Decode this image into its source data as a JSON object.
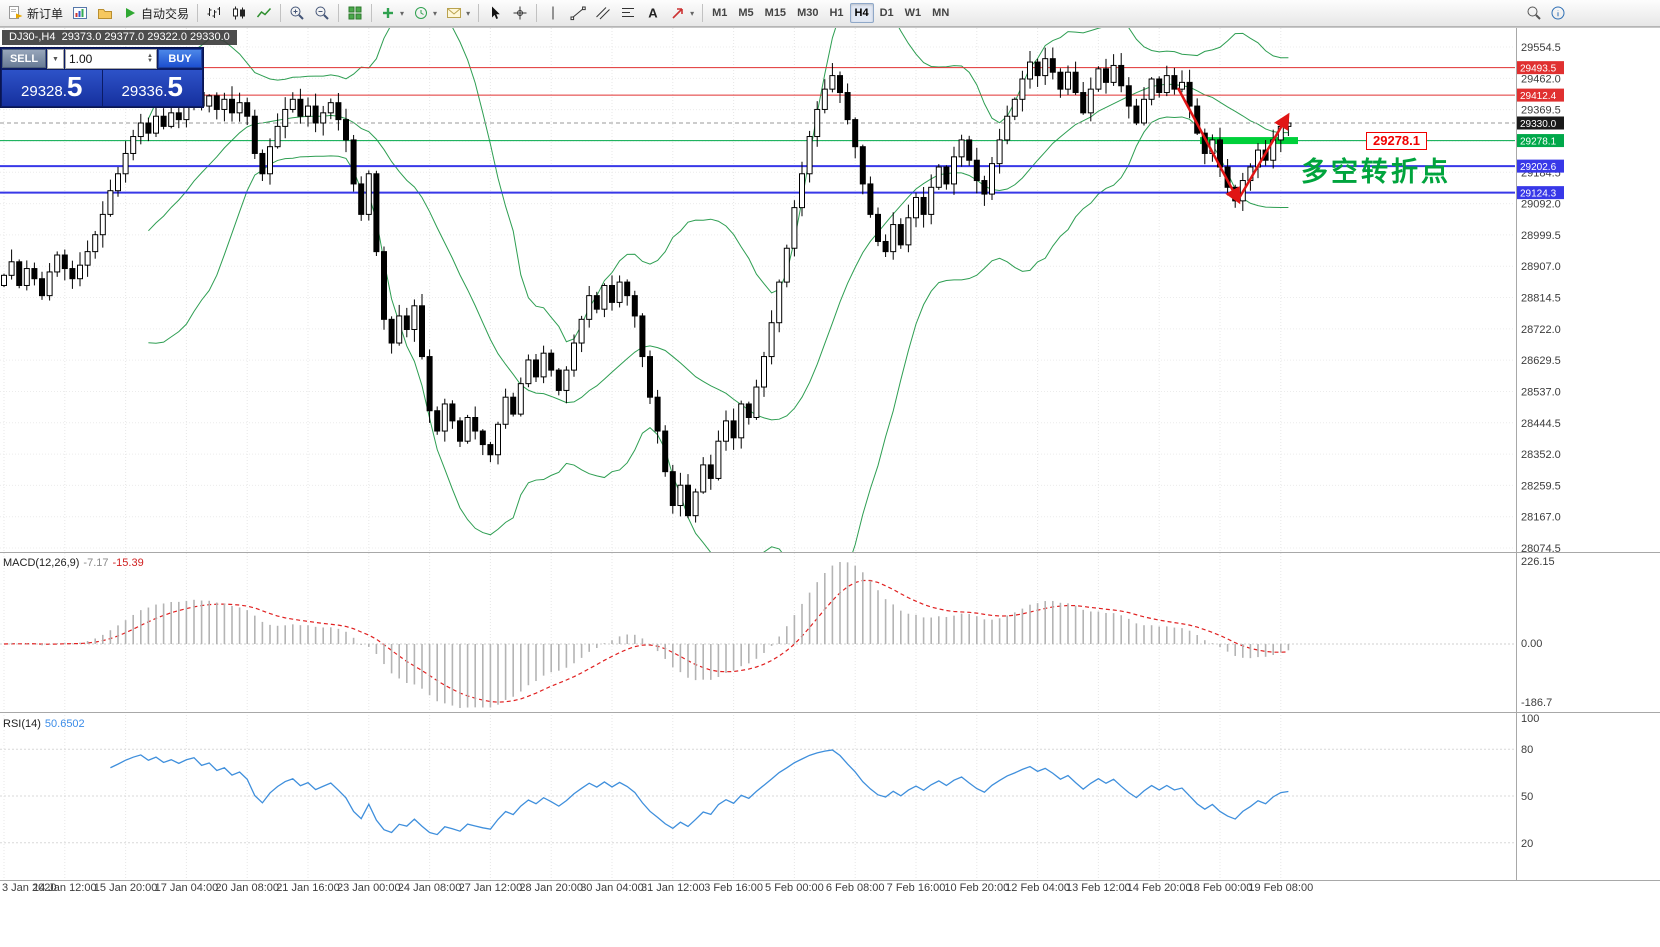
{
  "toolbar": {
    "new_order_label": "新订单",
    "autotrading_label": "自动交易",
    "timeframes": [
      "M1",
      "M5",
      "M15",
      "M30",
      "H1",
      "H4",
      "D1",
      "W1",
      "MN"
    ],
    "active_timeframe": "H4"
  },
  "chart": {
    "symbol_header": "DJ30-,H4  29373.0 29377.0 29322.0 29330.0",
    "one_click": {
      "sell_label": "SELL",
      "buy_label": "BUY",
      "volume": "1.00",
      "sell_price": "29328.5",
      "sell_price_main": "29328.",
      "sell_price_big": "5",
      "buy_price": "29336.5",
      "buy_price_main": "29336.",
      "buy_price_big": "5"
    },
    "annotations": {
      "price_flag": "29278.1",
      "note_text": "多空转折点"
    },
    "current_price_tag": {
      "value": 29330.0,
      "label": "29330.0",
      "color": "#1a1a1a"
    },
    "levels": [
      {
        "value": 29493.5,
        "label": "29493.5",
        "color": "#e03030",
        "width": 1
      },
      {
        "value": 29412.4,
        "label": "29412.4",
        "color": "#e03030",
        "width": 1
      },
      {
        "value": 29278.1,
        "label": "29278.1",
        "color": "#00a84a",
        "width": 1
      },
      {
        "value": 29202.6,
        "label": "29202.6",
        "color": "#3838e8",
        "width": 2
      },
      {
        "value": 29124.3,
        "label": "29124.3",
        "color": "#3838e8",
        "width": 2
      }
    ],
    "highlight_segment": {
      "value": 29278.1,
      "color": "#00d03a"
    }
  },
  "indicators": {
    "macd": {
      "name": "MACD(12,26,9)",
      "value_main": "-7.17",
      "value_signal": "-15.39",
      "fast": 12,
      "slow": 26,
      "signal": 9,
      "axis_labels": [
        "226.15",
        "0.00",
        "-186.7"
      ]
    },
    "rsi": {
      "name": "RSI(14)",
      "value": "50.6502",
      "period": 14,
      "axis_labels": [
        "100",
        "80",
        "50",
        "20"
      ],
      "axis_values": [
        100,
        80,
        50,
        20
      ]
    }
  },
  "chart_data": {
    "type": "candlestick",
    "symbol": "DJ30-",
    "timeframe": "H4",
    "last_bar": {
      "open": 29373.0,
      "high": 29377.0,
      "low": 29322.0,
      "close": 29330.0
    },
    "y_range": [
      28074.5,
      29554.5
    ],
    "y_tick_step": 92.5,
    "y_tick_labels": [
      "29554.5",
      "29462.0",
      "29369.5",
      "29277.0",
      "29184.5",
      "29092.0",
      "28999.5",
      "28907.0",
      "28814.5",
      "28722.0",
      "28629.5",
      "28537.0",
      "28444.5",
      "28352.0",
      "28259.5",
      "28167.0",
      "28074.5"
    ],
    "bars_per_x_label": 8,
    "x_labels": [
      "3 Jan 2020",
      "14 Jan 12:00",
      "15 Jan 20:00",
      "17 Jan 04:00",
      "20 Jan 08:00",
      "21 Jan 16:00",
      "23 Jan 00:00",
      "24 Jan 08:00",
      "27 Jan 12:00",
      "28 Jan 20:00",
      "30 Jan 04:00",
      "31 Jan 12:00",
      "3 Feb 16:00",
      "5 Feb 00:00",
      "6 Feb 08:00",
      "7 Feb 16:00",
      "10 Feb 20:00",
      "12 Feb 04:00",
      "13 Feb 12:00",
      "14 Feb 20:00",
      "18 Feb 00:00",
      "19 Feb 08:00"
    ],
    "overlays": {
      "bollinger": {
        "period": 20,
        "deviation": 2
      }
    },
    "closes": [
      28880,
      28920,
      28850,
      28900,
      28870,
      28820,
      28890,
      28940,
      28900,
      28870,
      28910,
      28950,
      29000,
      29060,
      29130,
      29180,
      29240,
      29290,
      29330,
      29300,
      29350,
      29320,
      29360,
      29340,
      29390,
      29420,
      29380,
      29410,
      29370,
      29400,
      29360,
      29390,
      29350,
      29240,
      29180,
      29260,
      29320,
      29370,
      29400,
      29350,
      29380,
      29330,
      29360,
      29390,
      29340,
      29280,
      29150,
      29060,
      29180,
      28950,
      28750,
      28680,
      28760,
      28720,
      28790,
      28640,
      28480,
      28420,
      28500,
      28450,
      28390,
      28460,
      28420,
      28380,
      28350,
      28440,
      28520,
      28470,
      28560,
      28630,
      28580,
      28650,
      28600,
      28540,
      28600,
      28680,
      28750,
      28820,
      28780,
      28850,
      28800,
      28860,
      28820,
      28760,
      28640,
      28520,
      28420,
      28300,
      28200,
      28260,
      28170,
      28240,
      28320,
      28280,
      28390,
      28450,
      28400,
      28500,
      28460,
      28550,
      28640,
      28740,
      28860,
      28960,
      29080,
      29180,
      29290,
      29370,
      29430,
      29470,
      29420,
      29340,
      29260,
      29150,
      29060,
      28980,
      28950,
      29030,
      28970,
      29050,
      29110,
      29060,
      29140,
      29200,
      29150,
      29230,
      29280,
      29220,
      29160,
      29120,
      29210,
      29280,
      29350,
      29400,
      29460,
      29510,
      29470,
      29520,
      29480,
      29430,
      29480,
      29420,
      29360,
      29430,
      29490,
      29450,
      29500,
      29440,
      29380,
      29330,
      29400,
      29460,
      29420,
      29470,
      29430,
      29450,
      29380,
      29300,
      29240,
      29280,
      29200,
      29140,
      29100,
      29160,
      29200,
      29250,
      29220,
      29280,
      29320,
      29330
    ]
  }
}
